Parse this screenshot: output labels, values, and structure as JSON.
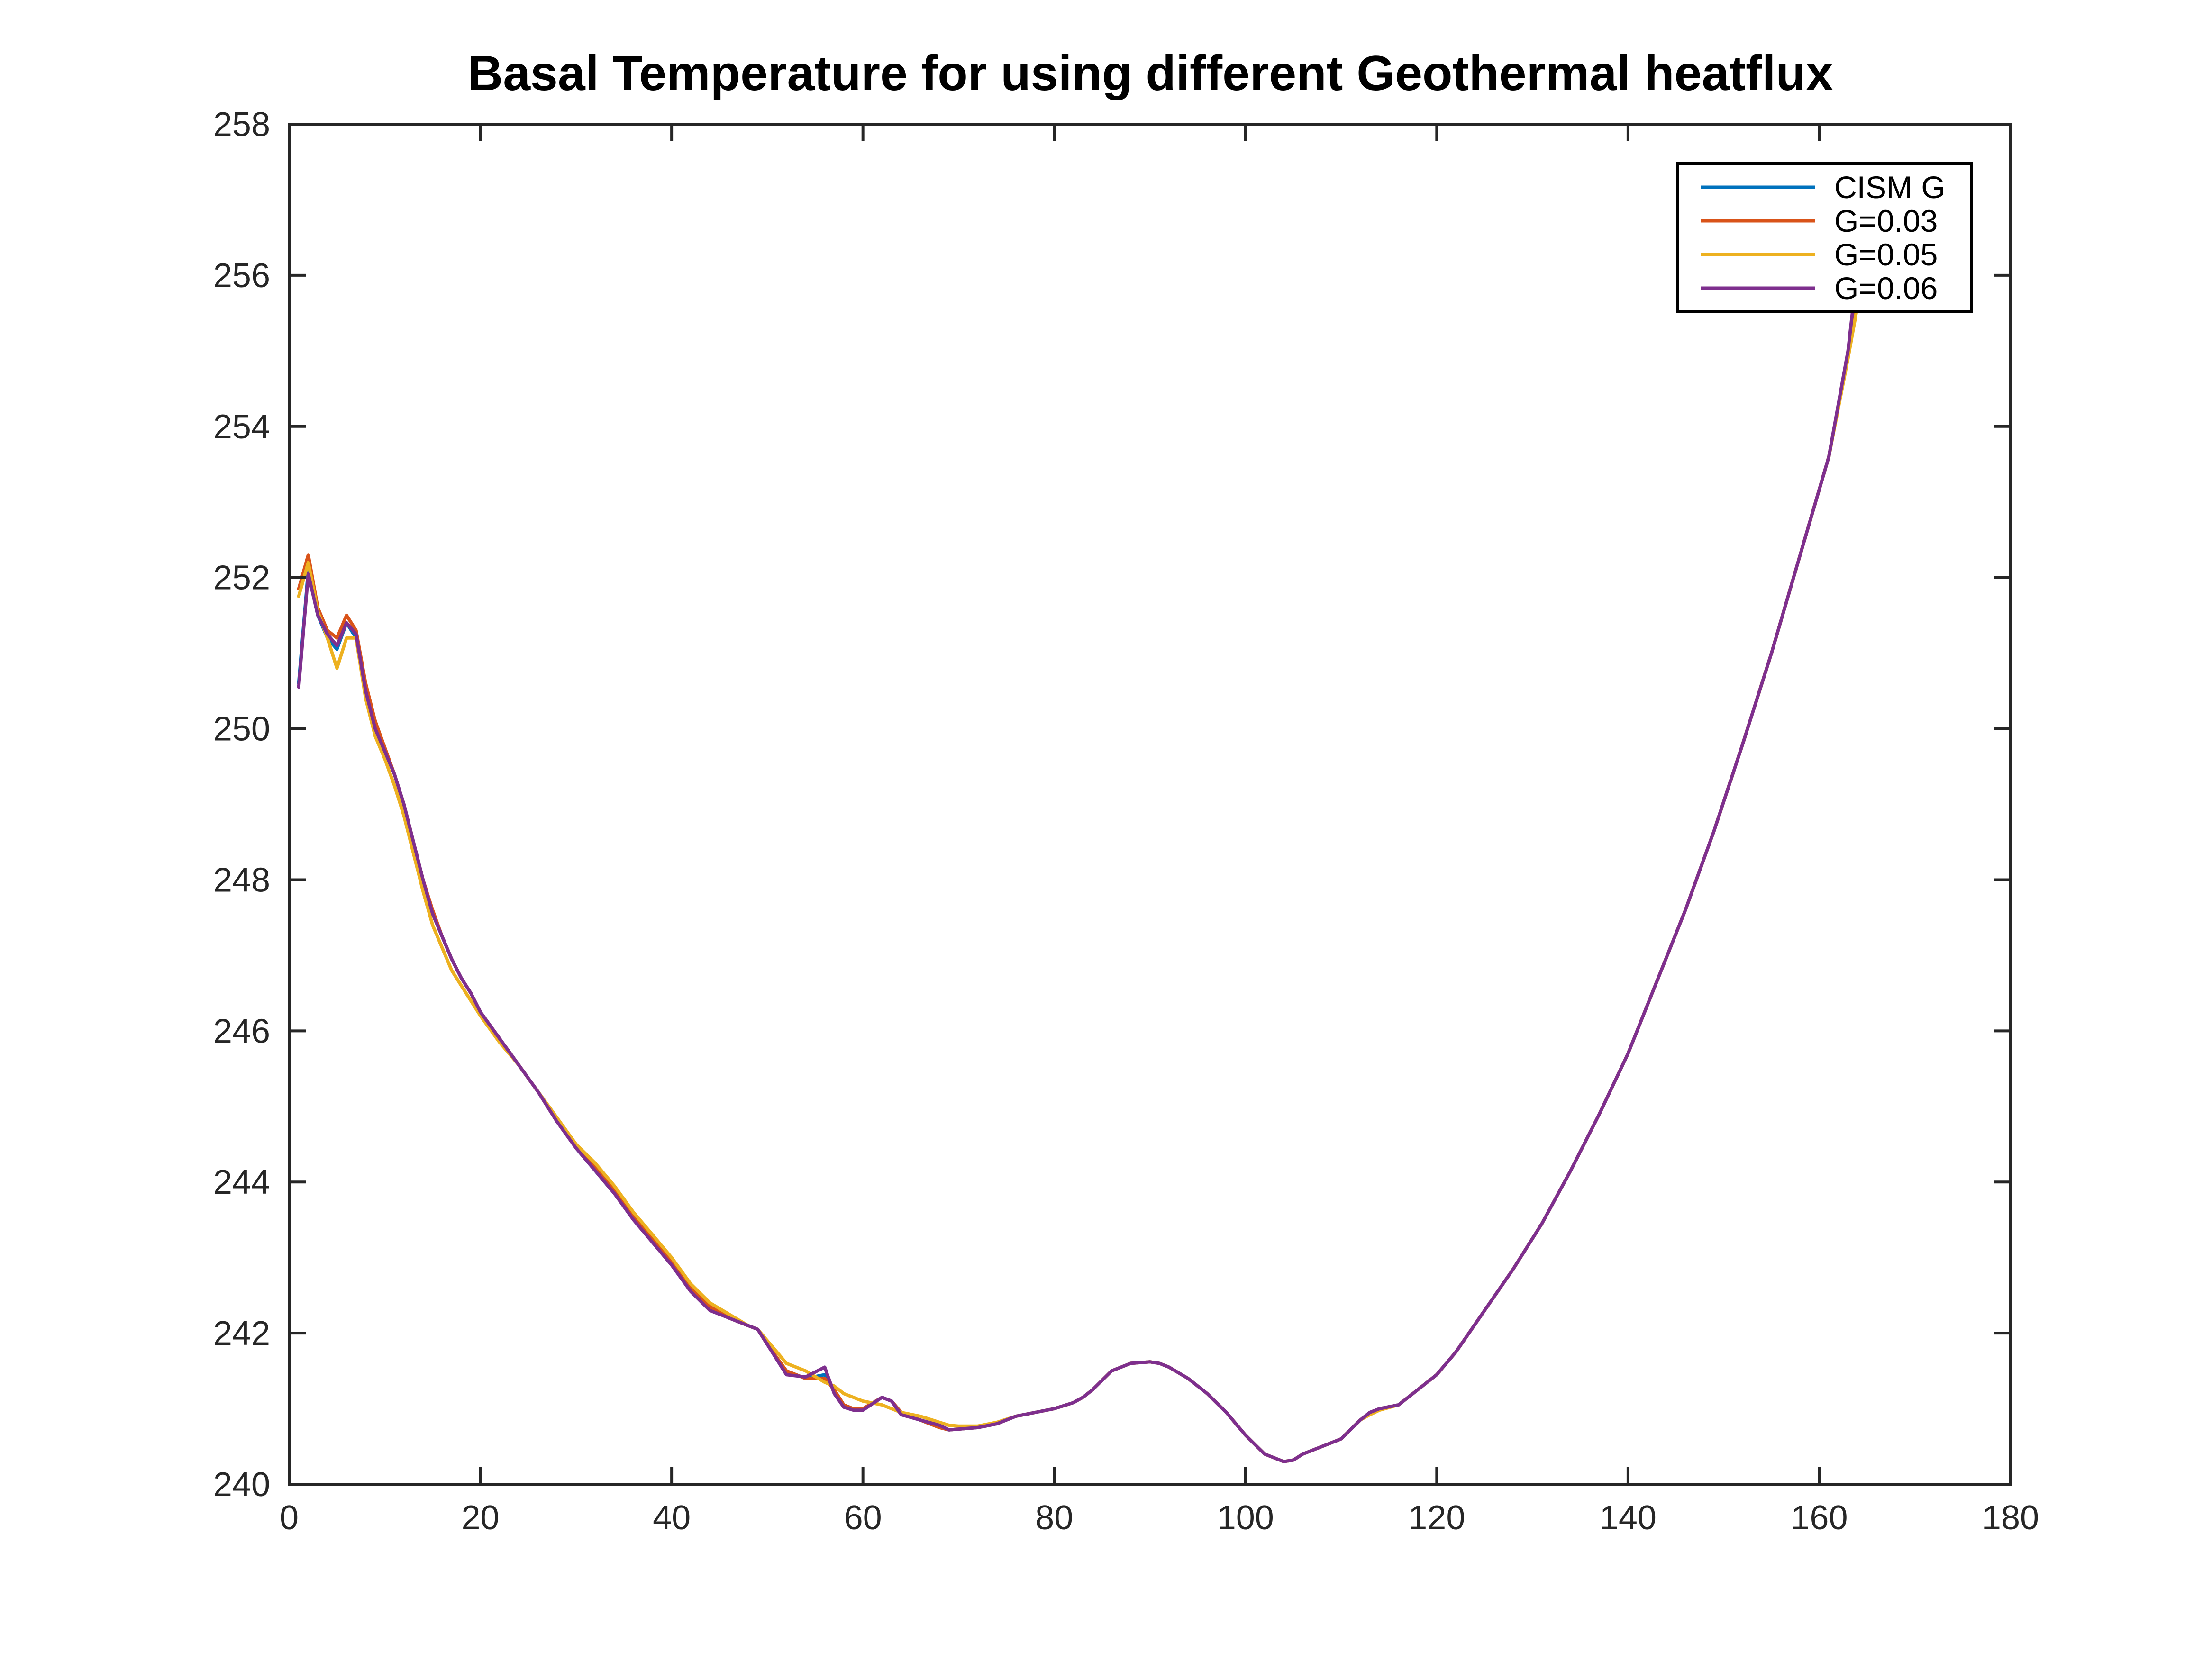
{
  "chart_data": {
    "type": "line",
    "title": "Basal Temperature for using different Geothermal heatflux",
    "xlabel": "",
    "ylabel": "",
    "xlim": [
      0,
      180
    ],
    "ylim": [
      240,
      258
    ],
    "xticks": [
      "0",
      "20",
      "40",
      "60",
      "80",
      "100",
      "120",
      "140",
      "160",
      "180"
    ],
    "yticks": [
      "240",
      "242",
      "244",
      "246",
      "248",
      "250",
      "252",
      "254",
      "256",
      "258"
    ],
    "grid": false,
    "legend_position": "top-right",
    "series": [
      {
        "name": "CISM G",
        "color": "#0072BD",
        "x": [
          1,
          2,
          3,
          4,
          5,
          6,
          7,
          8,
          9,
          10,
          11,
          12,
          13,
          14,
          15,
          16,
          17,
          18,
          19,
          20,
          22,
          24,
          26,
          28,
          30,
          32,
          34,
          36,
          38,
          40,
          42,
          44,
          46,
          48,
          49,
          50,
          52,
          54,
          56,
          57,
          58,
          59,
          60,
          62,
          63,
          64,
          66,
          68,
          69,
          70,
          72,
          74,
          76,
          78,
          80,
          82,
          83,
          84,
          86,
          88,
          90,
          91,
          92,
          94,
          96,
          98,
          100,
          102,
          104,
          105,
          106,
          108,
          110,
          112,
          113,
          114,
          116,
          118,
          120,
          122,
          125,
          128,
          131,
          134,
          137,
          140,
          143,
          146,
          149,
          152,
          155,
          158,
          161,
          163,
          164
        ],
        "y": [
          250.6,
          252.1,
          251.5,
          251.2,
          251.05,
          251.4,
          251.2,
          250.5,
          250.0,
          249.7,
          249.4,
          249.0,
          248.5,
          248.0,
          247.55,
          247.25,
          246.95,
          246.7,
          246.5,
          246.25,
          245.9,
          245.55,
          245.2,
          244.85,
          244.45,
          244.15,
          243.85,
          243.55,
          243.25,
          242.95,
          242.6,
          242.35,
          242.2,
          242.1,
          242.05,
          241.85,
          241.5,
          241.4,
          241.45,
          241.25,
          241.05,
          241.0,
          241.0,
          241.15,
          241.1,
          240.95,
          240.85,
          240.75,
          240.72,
          240.73,
          240.75,
          240.8,
          240.9,
          240.95,
          241.0,
          241.08,
          241.15,
          241.25,
          241.5,
          241.6,
          241.62,
          241.6,
          241.55,
          241.4,
          241.2,
          240.95,
          240.65,
          240.4,
          240.3,
          240.32,
          240.4,
          240.5,
          240.6,
          240.85,
          240.95,
          241.0,
          241.05,
          241.25,
          241.45,
          241.75,
          242.3,
          242.85,
          243.45,
          244.15,
          244.9,
          245.7,
          246.65,
          247.6,
          248.65,
          249.8,
          251.0,
          252.3,
          253.6,
          254.95,
          256.0
        ]
      },
      {
        "name": "G=0.03",
        "color": "#D95319",
        "x": [
          1,
          2,
          3,
          4,
          5,
          6,
          7,
          8,
          9,
          10,
          11,
          12,
          13,
          14,
          15,
          16,
          17,
          18,
          19,
          20,
          22,
          24,
          26,
          28,
          30,
          32,
          34,
          36,
          38,
          40,
          42,
          44,
          46,
          48,
          49,
          50,
          52,
          54,
          56,
          57,
          58,
          59,
          60,
          62,
          63,
          64,
          66,
          68,
          69,
          70,
          72,
          74,
          76,
          78,
          80,
          82,
          83,
          84,
          86,
          88,
          90,
          91,
          92,
          94,
          96,
          98,
          100,
          102,
          104,
          105,
          106,
          108,
          110,
          112,
          113,
          114,
          116,
          118,
          120,
          122,
          125,
          128,
          131,
          134,
          137,
          140,
          143,
          146,
          149,
          152,
          155,
          158,
          161,
          163,
          164
        ],
        "y": [
          251.85,
          252.3,
          251.6,
          251.3,
          251.2,
          251.5,
          251.3,
          250.6,
          250.1,
          249.75,
          249.4,
          249.0,
          248.5,
          248.0,
          247.6,
          247.25,
          246.95,
          246.7,
          246.5,
          246.25,
          245.9,
          245.55,
          245.2,
          244.85,
          244.5,
          244.2,
          243.9,
          243.55,
          243.25,
          242.95,
          242.6,
          242.35,
          242.2,
          242.1,
          242.05,
          241.85,
          241.5,
          241.4,
          241.4,
          241.25,
          241.05,
          241.0,
          241.0,
          241.15,
          241.1,
          240.95,
          240.85,
          240.75,
          240.72,
          240.73,
          240.75,
          240.8,
          240.9,
          240.95,
          241.0,
          241.08,
          241.15,
          241.25,
          241.5,
          241.6,
          241.62,
          241.6,
          241.55,
          241.4,
          241.2,
          240.95,
          240.65,
          240.4,
          240.3,
          240.32,
          240.4,
          240.5,
          240.6,
          240.85,
          240.95,
          241.0,
          241.05,
          241.25,
          241.45,
          241.75,
          242.3,
          242.85,
          243.45,
          244.15,
          244.9,
          245.7,
          246.65,
          247.6,
          248.65,
          249.8,
          251.0,
          252.3,
          253.6,
          254.95,
          255.9
        ]
      },
      {
        "name": "G=0.05",
        "color": "#EDB120",
        "x": [
          1,
          2,
          3,
          4,
          5,
          6,
          7,
          8,
          9,
          10,
          11,
          12,
          13,
          14,
          15,
          16,
          17,
          18,
          19,
          20,
          22,
          24,
          26,
          28,
          30,
          32,
          34,
          36,
          38,
          40,
          42,
          44,
          46,
          48,
          49,
          50,
          52,
          54,
          56,
          57,
          58,
          59,
          60,
          62,
          63,
          64,
          66,
          68,
          69,
          70,
          72,
          74,
          76,
          78,
          80,
          82,
          83,
          84,
          86,
          88,
          90,
          91,
          92,
          94,
          96,
          98,
          100,
          102,
          104,
          105,
          106,
          108,
          110,
          112,
          113,
          114,
          116,
          118,
          120,
          122,
          125,
          128,
          131,
          134,
          137,
          140,
          143,
          146,
          149,
          152,
          155,
          158,
          161,
          163,
          164
        ],
        "y": [
          251.75,
          252.2,
          251.55,
          251.2,
          250.8,
          251.2,
          251.2,
          250.4,
          249.9,
          249.6,
          249.25,
          248.85,
          248.35,
          247.85,
          247.4,
          247.1,
          246.8,
          246.6,
          246.4,
          246.2,
          245.85,
          245.55,
          245.2,
          244.85,
          244.5,
          244.25,
          243.95,
          243.6,
          243.3,
          243.0,
          242.65,
          242.4,
          242.25,
          242.1,
          242.05,
          241.9,
          241.6,
          241.5,
          241.35,
          241.3,
          241.2,
          241.15,
          241.1,
          241.05,
          241.0,
          240.95,
          240.9,
          240.82,
          240.78,
          240.77,
          240.77,
          240.82,
          240.9,
          240.95,
          241.0,
          241.08,
          241.15,
          241.25,
          241.5,
          241.6,
          241.62,
          241.6,
          241.55,
          241.4,
          241.2,
          240.95,
          240.65,
          240.4,
          240.3,
          240.32,
          240.4,
          240.5,
          240.6,
          240.85,
          240.92,
          240.98,
          241.05,
          241.25,
          241.45,
          241.75,
          242.3,
          242.85,
          243.45,
          244.15,
          244.9,
          245.7,
          246.65,
          247.6,
          248.65,
          249.8,
          251.0,
          252.3,
          253.6,
          254.9,
          255.6
        ]
      },
      {
        "name": "G=0.06",
        "color": "#7E2F8E",
        "x": [
          1,
          2,
          3,
          4,
          5,
          6,
          7,
          8,
          9,
          10,
          11,
          12,
          13,
          14,
          15,
          16,
          17,
          18,
          19,
          20,
          22,
          24,
          26,
          28,
          30,
          32,
          34,
          36,
          38,
          40,
          42,
          44,
          46,
          48,
          49,
          50,
          52,
          54,
          56,
          57,
          58,
          59,
          60,
          62,
          63,
          64,
          66,
          68,
          69,
          70,
          72,
          74,
          76,
          78,
          80,
          82,
          83,
          84,
          86,
          88,
          90,
          91,
          92,
          94,
          96,
          98,
          100,
          102,
          104,
          105,
          106,
          108,
          110,
          112,
          113,
          114,
          116,
          118,
          120,
          122,
          125,
          128,
          131,
          134,
          137,
          140,
          143,
          146,
          149,
          152,
          155,
          158,
          161,
          163,
          164
        ],
        "y": [
          250.55,
          252.05,
          251.5,
          251.25,
          251.1,
          251.4,
          251.25,
          250.5,
          250.0,
          249.7,
          249.4,
          249.0,
          248.5,
          248.0,
          247.55,
          247.25,
          246.95,
          246.7,
          246.5,
          246.25,
          245.9,
          245.55,
          245.2,
          244.8,
          244.45,
          244.15,
          243.85,
          243.5,
          243.2,
          242.9,
          242.55,
          242.3,
          242.2,
          242.1,
          242.05,
          241.85,
          241.45,
          241.42,
          241.55,
          241.2,
          241.02,
          240.98,
          240.98,
          241.15,
          241.1,
          240.92,
          240.85,
          240.78,
          240.72,
          240.73,
          240.75,
          240.8,
          240.9,
          240.95,
          241.0,
          241.08,
          241.15,
          241.25,
          241.5,
          241.6,
          241.62,
          241.6,
          241.55,
          241.4,
          241.2,
          240.95,
          240.65,
          240.4,
          240.3,
          240.32,
          240.4,
          240.5,
          240.6,
          240.85,
          240.95,
          241.0,
          241.05,
          241.25,
          241.45,
          241.75,
          242.3,
          242.85,
          243.45,
          244.15,
          244.9,
          245.7,
          246.65,
          247.6,
          248.65,
          249.8,
          251.0,
          252.3,
          253.6,
          255.0,
          256.1
        ]
      }
    ]
  }
}
